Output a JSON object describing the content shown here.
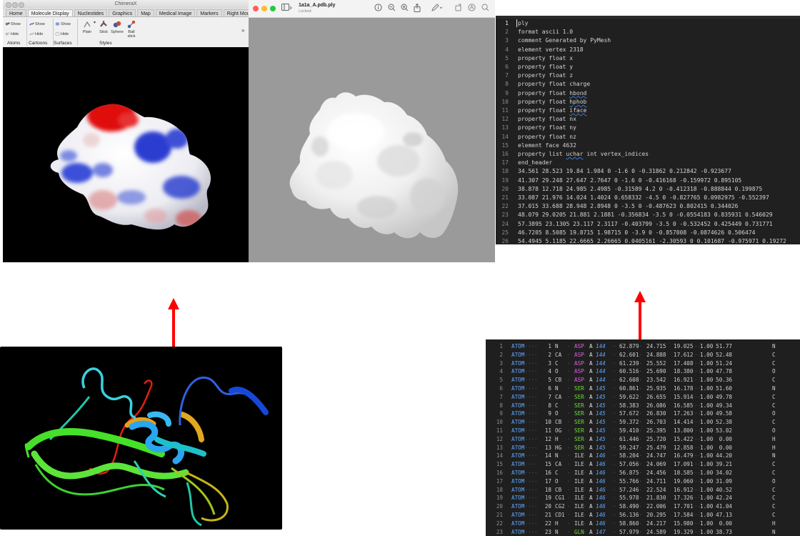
{
  "chimerax": {
    "window_title": "ChimeraX",
    "tabs": [
      "Home",
      "Molecule Display",
      "Nucleotides",
      "Graphics",
      "Map",
      "Medical Image",
      "Markers",
      "Right Mouse"
    ],
    "active_tab": "Molecule Display",
    "ribbon": {
      "atoms": {
        "show": "Show",
        "hide": "Hide",
        "group": "Atoms"
      },
      "cartoons": {
        "show": "Show",
        "hide": "Hide",
        "group": "Cartoons"
      },
      "surfaces": {
        "show": "Show",
        "hide": "Hide",
        "group": "Surfaces"
      },
      "styles": {
        "plain": "Plain",
        "stick": "Stick",
        "sphere": "Sphere",
        "ball": "Ball",
        "stick2": "stick",
        "group": "Styles"
      },
      "overflow": "»"
    }
  },
  "preview": {
    "filename": "1a1a_A.pdb.ply",
    "status": "Locked"
  },
  "ply_editor": {
    "lines": [
      "ply",
      "format ascii 1.0",
      "comment Generated by PyMesh",
      "element vertex 2318",
      "property float x",
      "property float y",
      "property float z",
      "property float charge",
      "property float hbond",
      "property float hphob",
      "property float iface",
      "property float nx",
      "property float ny",
      "property float nz",
      "element face 4632",
      "property list uchar int vertex_indices",
      "end_header",
      "34.561 28.523 19.84 1.984 0 -1.6 0 -0.31862 0.212842 -0.923677",
      "41.307 29.248 27.647 2.7647 0 -1.6 0 -0.416168 -0.159972 0.895105",
      "38.878 12.718 24.985 2.4985 -0.31589 4.2 0 -0.412318 -0.888844 0.199875",
      "33.087 21.976 14.024 1.4024 0.658332 -4.5 0 -0.827765 0.0982975 -0.552397",
      "37.015 33.688 28.948 2.8948 0 -3.5 0 -0.487623 0.802415 0.344026",
      "48.079 29.0205 21.881 2.1881 -0.356834 -3.5 0 -0.0554183 0.835931 0.546029",
      "57.3895 23.1305 23.117 2.3117 -0.403799 -3.5 0 -0.532452 0.425449 0.731771",
      "46.7205 8.5085 19.8715 1.98715 0 -3.9 0 -0.857808 -0.0874626 0.506474",
      "54.4945 5.1185 22.6665 2.26665 0.0405161 -2.30593 0 0.101687 -0.975971 0.19272"
    ]
  },
  "pdb_editor": {
    "rows": [
      {
        "rec": "ATOM",
        "serial": "1",
        "atom": "N",
        "res": "ASP",
        "chain": "A",
        "seq": "144",
        "x": "62.879",
        "y": "24.715",
        "z": "19.025",
        "occ": "1.00",
        "b": "51.77",
        "el": "N"
      },
      {
        "rec": "ATOM",
        "serial": "2",
        "atom": "CA",
        "res": "ASP",
        "chain": "A",
        "seq": "144",
        "x": "62.601",
        "y": "24.888",
        "z": "17.612",
        "occ": "1.00",
        "b": "52.48",
        "el": "C"
      },
      {
        "rec": "ATOM",
        "serial": "3",
        "atom": "C",
        "res": "ASP",
        "chain": "A",
        "seq": "144",
        "x": "61.239",
        "y": "25.552",
        "z": "17.408",
        "occ": "1.00",
        "b": "51.24",
        "el": "C"
      },
      {
        "rec": "ATOM",
        "serial": "4",
        "atom": "O",
        "res": "ASP",
        "chain": "A",
        "seq": "144",
        "x": "60.516",
        "y": "25.690",
        "z": "18.380",
        "occ": "1.00",
        "b": "47.78",
        "el": "O"
      },
      {
        "rec": "ATOM",
        "serial": "5",
        "atom": "CB",
        "res": "ASP",
        "chain": "A",
        "seq": "144",
        "x": "62.608",
        "y": "23.542",
        "z": "16.921",
        "occ": "1.00",
        "b": "50.36",
        "el": "C"
      },
      {
        "rec": "ATOM",
        "serial": "6",
        "atom": "N",
        "res": "SER",
        "chain": "A",
        "seq": "145",
        "x": "60.861",
        "y": "25.935",
        "z": "16.178",
        "occ": "1.00",
        "b": "51.60",
        "el": "N"
      },
      {
        "rec": "ATOM",
        "serial": "7",
        "atom": "CA",
        "res": "SER",
        "chain": "A",
        "seq": "145",
        "x": "59.622",
        "y": "26.655",
        "z": "15.914",
        "occ": "1.00",
        "b": "49.78",
        "el": "C"
      },
      {
        "rec": "ATOM",
        "serial": "8",
        "atom": "C",
        "res": "SER",
        "chain": "A",
        "seq": "145",
        "x": "58.383",
        "y": "26.086",
        "z": "16.585",
        "occ": "1.00",
        "b": "49.34",
        "el": "C"
      },
      {
        "rec": "ATOM",
        "serial": "9",
        "atom": "O",
        "res": "SER",
        "chain": "A",
        "seq": "145",
        "x": "57.672",
        "y": "26.830",
        "z": "17.263",
        "occ": "1.00",
        "b": "49.58",
        "el": "O"
      },
      {
        "rec": "ATOM",
        "serial": "10",
        "atom": "CB",
        "res": "SER",
        "chain": "A",
        "seq": "145",
        "x": "59.372",
        "y": "26.703",
        "z": "14.414",
        "occ": "1.00",
        "b": "52.38",
        "el": "C"
      },
      {
        "rec": "ATOM",
        "serial": "11",
        "atom": "OG",
        "res": "SER",
        "chain": "A",
        "seq": "145",
        "x": "59.410",
        "y": "25.395",
        "z": "13.800",
        "occ": "1.00",
        "b": "53.02",
        "el": "O"
      },
      {
        "rec": "ATOM",
        "serial": "12",
        "atom": "H",
        "res": "SER",
        "chain": "A",
        "seq": "145",
        "x": "61.446",
        "y": "25.720",
        "z": "15.422",
        "occ": "1.00",
        "b": "0.00",
        "el": "H"
      },
      {
        "rec": "ATOM",
        "serial": "13",
        "atom": "HG",
        "res": "SER",
        "chain": "A",
        "seq": "145",
        "x": "59.247",
        "y": "25.479",
        "z": "12.858",
        "occ": "1.00",
        "b": "0.00",
        "el": "H"
      },
      {
        "rec": "ATOM",
        "serial": "14",
        "atom": "N",
        "res": "ILE",
        "chain": "A",
        "seq": "146",
        "x": "58.204",
        "y": "24.747",
        "z": "16.479",
        "occ": "1.00",
        "b": "44.20",
        "el": "N"
      },
      {
        "rec": "ATOM",
        "serial": "15",
        "atom": "CA",
        "res": "ILE",
        "chain": "A",
        "seq": "146",
        "x": "57.056",
        "y": "24.069",
        "z": "17.091",
        "occ": "1.00",
        "b": "39.21",
        "el": "C"
      },
      {
        "rec": "ATOM",
        "serial": "16",
        "atom": "C",
        "res": "ILE",
        "chain": "A",
        "seq": "146",
        "x": "56.875",
        "y": "24.456",
        "z": "18.585",
        "occ": "1.00",
        "b": "34.02",
        "el": "C"
      },
      {
        "rec": "ATOM",
        "serial": "17",
        "atom": "O",
        "res": "ILE",
        "chain": "A",
        "seq": "146",
        "x": "55.766",
        "y": "24.711",
        "z": "19.060",
        "occ": "1.00",
        "b": "31.09",
        "el": "O"
      },
      {
        "rec": "ATOM",
        "serial": "18",
        "atom": "CB",
        "res": "ILE",
        "chain": "A",
        "seq": "146",
        "x": "57.246",
        "y": "22.524",
        "z": "16.912",
        "occ": "1.00",
        "b": "40.52",
        "el": "C"
      },
      {
        "rec": "ATOM",
        "serial": "19",
        "atom": "CG1",
        "res": "ILE",
        "chain": "A",
        "seq": "146",
        "x": "55.978",
        "y": "21.830",
        "z": "17.326",
        "occ": "1.00",
        "b": "42.24",
        "el": "C"
      },
      {
        "rec": "ATOM",
        "serial": "20",
        "atom": "CG2",
        "res": "ILE",
        "chain": "A",
        "seq": "146",
        "x": "58.490",
        "y": "22.006",
        "z": "17.701",
        "occ": "1.00",
        "b": "41.04",
        "el": "C"
      },
      {
        "rec": "ATOM",
        "serial": "21",
        "atom": "CD1",
        "res": "ILE",
        "chain": "A",
        "seq": "146",
        "x": "56.136",
        "y": "20.295",
        "z": "17.584",
        "occ": "1.00",
        "b": "47.13",
        "el": "C"
      },
      {
        "rec": "ATOM",
        "serial": "22",
        "atom": "H",
        "res": "ILE",
        "chain": "A",
        "seq": "146",
        "x": "58.860",
        "y": "24.217",
        "z": "15.980",
        "occ": "1.00",
        "b": "0.00",
        "el": "H"
      },
      {
        "rec": "ATOM",
        "serial": "23",
        "atom": "N",
        "res": "GLN",
        "chain": "A",
        "seq": "147",
        "x": "57.979",
        "y": "24.589",
        "z": "19.329",
        "occ": "1.00",
        "b": "38.73",
        "el": "N"
      }
    ]
  },
  "colors": {
    "arrow": "#ff0000",
    "editor_bg": "#202020",
    "preview_bg": "#9a9a9a",
    "viewport_bg": "#000000",
    "close": "#ff5f57",
    "minimize": "#febc2e",
    "zoom": "#28c840"
  },
  "icons": {
    "sidebar": "sidebar-icon",
    "info": "info-icon",
    "zoom_out": "zoom-out-icon",
    "zoom_in": "zoom-in-icon",
    "share": "share-icon",
    "markup": "markup-pen-icon",
    "rotate": "rotate-icon",
    "annotate": "annotate-icon",
    "search": "search-icon"
  }
}
